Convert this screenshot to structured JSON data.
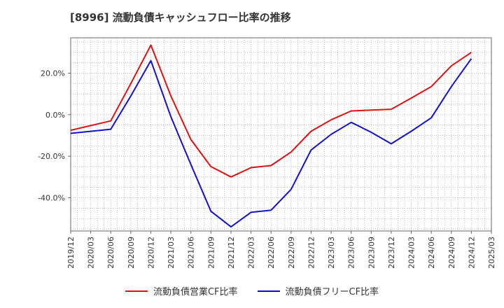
{
  "chart_data": {
    "type": "line",
    "title": "[8996]  流動負債キャッシュフロー比率の推移",
    "xlabel": "",
    "ylabel": "",
    "x_ticks": [
      "2019/12",
      "2020/03",
      "2020/06",
      "2020/09",
      "2020/12",
      "2021/03",
      "2021/06",
      "2021/09",
      "2021/12",
      "2022/03",
      "2022/06",
      "2022/09",
      "2022/12",
      "2023/03",
      "2023/06",
      "2023/09",
      "2023/12",
      "2024/03",
      "2024/06",
      "2024/09",
      "2024/12",
      "2025/03"
    ],
    "y_ticks": [
      {
        "value": 20,
        "label": "20.0%"
      },
      {
        "value": 0,
        "label": "0.0%"
      },
      {
        "value": -20,
        "label": "-20.0%"
      },
      {
        "value": -40,
        "label": "-40.0%"
      }
    ],
    "ylim": [
      -56,
      37
    ],
    "grid": true,
    "legend_position": "bottom",
    "series": [
      {
        "name": "流動負債営業CF比率",
        "color": "#dd1111",
        "x": [
          "2019/12",
          "2020/06",
          "2020/09",
          "2020/12",
          "2021/03",
          "2021/06",
          "2021/09",
          "2021/12",
          "2022/03",
          "2022/06",
          "2022/09",
          "2022/12",
          "2023/03",
          "2023/06",
          "2023/09",
          "2023/12",
          "2024/03",
          "2024/06",
          "2024/09",
          "2024/12"
        ],
        "values": [
          -7.5,
          -3,
          15,
          33.5,
          9,
          -12,
          -25,
          -30,
          -25.5,
          -24.5,
          -18,
          -8,
          -2.5,
          1.8,
          2.2,
          2.6,
          8,
          13.5,
          23.5,
          30
        ]
      },
      {
        "name": "流動負債フリーCF比率",
        "color": "#1111cc",
        "x": [
          "2019/12",
          "2020/06",
          "2020/09",
          "2020/12",
          "2021/03",
          "2021/06",
          "2021/09",
          "2021/12",
          "2022/03",
          "2022/06",
          "2022/09",
          "2022/12",
          "2023/03",
          "2023/06",
          "2023/09",
          "2023/12",
          "2024/03",
          "2024/06",
          "2024/09",
          "2024/12"
        ],
        "values": [
          -9,
          -7,
          9,
          26,
          -1,
          -24,
          -46.5,
          -54,
          -47,
          -46,
          -36,
          -17,
          -9.5,
          -3.7,
          -8.5,
          -14,
          -8,
          -1.5,
          13.5,
          27
        ]
      }
    ]
  }
}
